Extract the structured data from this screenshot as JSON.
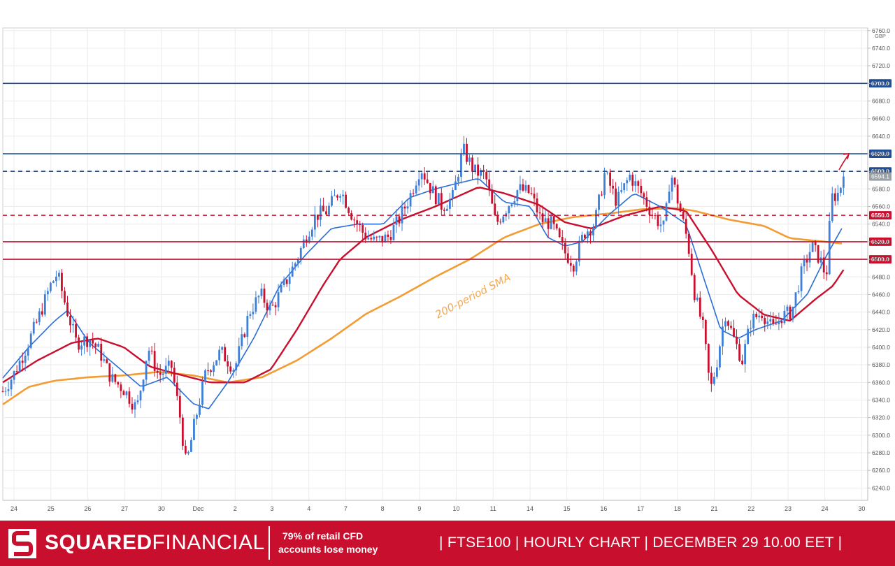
{
  "chart_data": {
    "type": "candlestick",
    "title": "",
    "currency": "GBP",
    "y_ticks": [
      6240,
      6260,
      6280,
      6300,
      6320,
      6340,
      6360,
      6380,
      6400,
      6420,
      6440,
      6460,
      6480,
      6500,
      6520,
      6540,
      6560,
      6580,
      6600,
      6620,
      6640,
      6660,
      6680,
      6700,
      6720,
      6740,
      6760
    ],
    "ylim": [
      6226,
      6763
    ],
    "x_ticks": [
      "24",
      "25",
      "26",
      "27",
      "30",
      "Dec",
      "2",
      "3",
      "4",
      "7",
      "8",
      "9",
      "10",
      "11",
      "14",
      "15",
      "16",
      "17",
      "18",
      "21",
      "22",
      "23",
      "24",
      "30"
    ],
    "levels": [
      {
        "label": "6700.0",
        "value": 6700,
        "color": "#1f4e96",
        "style": "solid"
      },
      {
        "label": "6620.0",
        "value": 6620,
        "color": "#1f4e96",
        "style": "solid"
      },
      {
        "label": "6600.0",
        "value": 6600,
        "color": "#1f4e96",
        "style": "dashed"
      },
      {
        "label": "6550.0",
        "value": 6550,
        "color": "#c8102e",
        "style": "dashed"
      },
      {
        "label": "6520.0",
        "value": 6520,
        "color": "#c8102e",
        "style": "solid"
      },
      {
        "label": "6500.0",
        "value": 6500,
        "color": "#c8102e",
        "style": "solid"
      }
    ],
    "last_price_label": "6594.1",
    "last_price": 6594.1,
    "annotation": "200-period SMA",
    "colors": {
      "up": "#3d7fd9",
      "down": "#c8102e",
      "sma200": "#f39c33",
      "sma_red": "#c8102e",
      "sma_blue": "#2a6ed6",
      "sma_thin": "#f28b9a"
    },
    "price_path": [
      [
        0,
        6350
      ],
      [
        0.012,
        6368
      ],
      [
        0.025,
        6395
      ],
      [
        0.04,
        6430
      ],
      [
        0.055,
        6470
      ],
      [
        0.063,
        6484
      ],
      [
        0.072,
        6450
      ],
      [
        0.085,
        6405
      ],
      [
        0.1,
        6410
      ],
      [
        0.112,
        6395
      ],
      [
        0.125,
        6365
      ],
      [
        0.14,
        6352
      ],
      [
        0.155,
        6330
      ],
      [
        0.168,
        6400
      ],
      [
        0.18,
        6368
      ],
      [
        0.195,
        6378
      ],
      [
        0.205,
        6320
      ],
      [
        0.212,
        6265
      ],
      [
        0.222,
        6315
      ],
      [
        0.235,
        6372
      ],
      [
        0.252,
        6395
      ],
      [
        0.268,
        6375
      ],
      [
        0.285,
        6440
      ],
      [
        0.298,
        6460
      ],
      [
        0.31,
        6442
      ],
      [
        0.325,
        6470
      ],
      [
        0.34,
        6500
      ],
      [
        0.352,
        6530
      ],
      [
        0.362,
        6550
      ],
      [
        0.375,
        6555
      ],
      [
        0.39,
        6580
      ],
      [
        0.405,
        6548
      ],
      [
        0.418,
        6528
      ],
      [
        0.43,
        6520
      ],
      [
        0.445,
        6525
      ],
      [
        0.458,
        6545
      ],
      [
        0.47,
        6570
      ],
      [
        0.483,
        6605
      ],
      [
        0.495,
        6580
      ],
      [
        0.508,
        6560
      ],
      [
        0.52,
        6570
      ],
      [
        0.532,
        6625
      ],
      [
        0.545,
        6600
      ],
      [
        0.558,
        6595
      ],
      [
        0.57,
        6540
      ],
      [
        0.583,
        6560
      ],
      [
        0.596,
        6580
      ],
      [
        0.61,
        6575
      ],
      [
        0.622,
        6545
      ],
      [
        0.635,
        6540
      ],
      [
        0.648,
        6510
      ],
      [
        0.66,
        6495
      ],
      [
        0.672,
        6530
      ],
      [
        0.684,
        6540
      ],
      [
        0.696,
        6598
      ],
      [
        0.71,
        6565
      ],
      [
        0.725,
        6595
      ],
      [
        0.738,
        6575
      ],
      [
        0.752,
        6550
      ],
      [
        0.765,
        6535
      ],
      [
        0.772,
        6600
      ],
      [
        0.782,
        6560
      ],
      [
        0.792,
        6520
      ],
      [
        0.8,
        6460
      ],
      [
        0.81,
        6420
      ],
      [
        0.818,
        6350
      ],
      [
        0.825,
        6380
      ],
      [
        0.835,
        6440
      ],
      [
        0.845,
        6410
      ],
      [
        0.855,
        6385
      ],
      [
        0.865,
        6430
      ],
      [
        0.878,
        6440
      ],
      [
        0.89,
        6420
      ],
      [
        0.9,
        6435
      ],
      [
        0.912,
        6440
      ],
      [
        0.922,
        6480
      ],
      [
        0.935,
        6515
      ],
      [
        0.945,
        6500
      ],
      [
        0.952,
        6480
      ],
      [
        0.958,
        6570
      ],
      [
        0.966,
        6575
      ],
      [
        0.972,
        6594
      ]
    ],
    "sma200_path": [
      [
        0,
        6335
      ],
      [
        0.03,
        6355
      ],
      [
        0.06,
        6362
      ],
      [
        0.1,
        6366
      ],
      [
        0.14,
        6368
      ],
      [
        0.18,
        6372
      ],
      [
        0.22,
        6368
      ],
      [
        0.26,
        6360
      ],
      [
        0.3,
        6366
      ],
      [
        0.34,
        6385
      ],
      [
        0.38,
        6410
      ],
      [
        0.42,
        6438
      ],
      [
        0.46,
        6458
      ],
      [
        0.5,
        6480
      ],
      [
        0.54,
        6500
      ],
      [
        0.58,
        6525
      ],
      [
        0.62,
        6540
      ],
      [
        0.66,
        6548
      ],
      [
        0.7,
        6552
      ],
      [
        0.74,
        6557
      ],
      [
        0.78,
        6558
      ],
      [
        0.8,
        6555
      ],
      [
        0.84,
        6545
      ],
      [
        0.88,
        6538
      ],
      [
        0.91,
        6524
      ],
      [
        0.95,
        6520
      ],
      [
        0.97,
        6518
      ]
    ],
    "sma_red_path": [
      [
        0,
        6360
      ],
      [
        0.04,
        6385
      ],
      [
        0.08,
        6405
      ],
      [
        0.11,
        6410
      ],
      [
        0.14,
        6400
      ],
      [
        0.17,
        6378
      ],
      [
        0.2,
        6370
      ],
      [
        0.24,
        6360
      ],
      [
        0.28,
        6360
      ],
      [
        0.31,
        6375
      ],
      [
        0.34,
        6420
      ],
      [
        0.37,
        6470
      ],
      [
        0.39,
        6500
      ],
      [
        0.42,
        6525
      ],
      [
        0.46,
        6545
      ],
      [
        0.5,
        6560
      ],
      [
        0.55,
        6582
      ],
      [
        0.58,
        6575
      ],
      [
        0.62,
        6562
      ],
      [
        0.65,
        6542
      ],
      [
        0.68,
        6535
      ],
      [
        0.72,
        6550
      ],
      [
        0.76,
        6560
      ],
      [
        0.79,
        6555
      ],
      [
        0.82,
        6510
      ],
      [
        0.85,
        6460
      ],
      [
        0.88,
        6437
      ],
      [
        0.91,
        6430
      ],
      [
        0.94,
        6455
      ],
      [
        0.96,
        6470
      ],
      [
        0.972,
        6488
      ]
    ],
    "sma_blue_path": [
      [
        0,
        6365
      ],
      [
        0.03,
        6400
      ],
      [
        0.06,
        6430
      ],
      [
        0.075,
        6442
      ],
      [
        0.1,
        6405
      ],
      [
        0.13,
        6380
      ],
      [
        0.16,
        6355
      ],
      [
        0.19,
        6366
      ],
      [
        0.22,
        6336
      ],
      [
        0.238,
        6330
      ],
      [
        0.26,
        6360
      ],
      [
        0.29,
        6410
      ],
      [
        0.32,
        6470
      ],
      [
        0.35,
        6505
      ],
      [
        0.38,
        6535
      ],
      [
        0.41,
        6540
      ],
      [
        0.44,
        6540
      ],
      [
        0.47,
        6570
      ],
      [
        0.5,
        6580
      ],
      [
        0.52,
        6585
      ],
      [
        0.55,
        6592
      ],
      [
        0.58,
        6565
      ],
      [
        0.61,
        6560
      ],
      [
        0.63,
        6525
      ],
      [
        0.65,
        6515
      ],
      [
        0.67,
        6520
      ],
      [
        0.7,
        6550
      ],
      [
        0.73,
        6575
      ],
      [
        0.76,
        6560
      ],
      [
        0.79,
        6540
      ],
      [
        0.81,
        6480
      ],
      [
        0.83,
        6420
      ],
      [
        0.85,
        6410
      ],
      [
        0.87,
        6420
      ],
      [
        0.9,
        6430
      ],
      [
        0.93,
        6460
      ],
      [
        0.95,
        6500
      ],
      [
        0.97,
        6535
      ]
    ]
  },
  "footer": {
    "brand_bold": "SQUARED",
    "brand_light": "FINANCIAL",
    "warning_line1": "79% of retail CFD",
    "warning_line2": "accounts lose money",
    "info": "|  FTSE100  |  HOURLY CHART  |  DECEMBER 29    10.00 EET  |"
  }
}
